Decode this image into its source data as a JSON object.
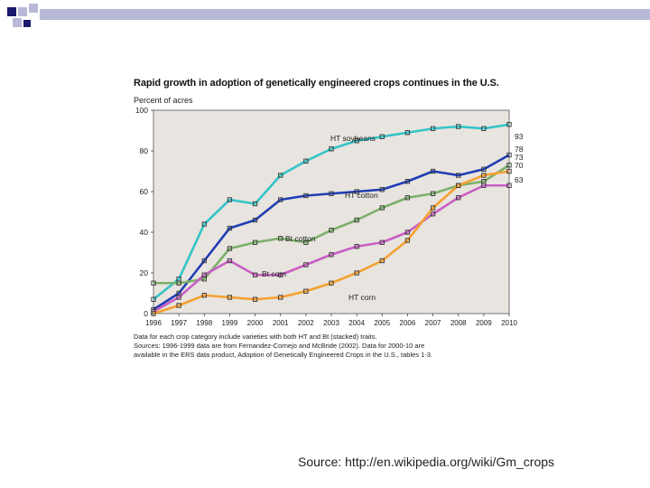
{
  "chart_data": {
    "type": "line",
    "title": "Rapid growth in adoption of genetically engineered crops continues in the U.S.",
    "ylabel": "Percent of acres",
    "xlabel": "",
    "ylim": [
      0,
      100
    ],
    "yticks": [
      0,
      20,
      40,
      60,
      80,
      100
    ],
    "x": [
      "1996",
      "1997",
      "1998",
      "1999",
      "2000",
      "2001",
      "2002",
      "2003",
      "2004",
      "2005",
      "2006",
      "2007",
      "2008",
      "2009",
      "2010"
    ],
    "grid": false,
    "legend": "inline labels",
    "series": [
      {
        "name": "HT soybeans",
        "color": "#33c4c8",
        "end_label": "93",
        "values": [
          7,
          17,
          44,
          56,
          54,
          68,
          75,
          81,
          85,
          87,
          89,
          91,
          92,
          91,
          93
        ]
      },
      {
        "name": "HT cotton",
        "color": "#1f3db5",
        "end_label": "78",
        "values": [
          2,
          10,
          26,
          42,
          46,
          56,
          58,
          59,
          60,
          61,
          65,
          70,
          68,
          71,
          78
        ]
      },
      {
        "name": "Bt cotton",
        "color": "#7ab06a",
        "end_label": "73",
        "values": [
          15,
          15,
          17,
          32,
          35,
          37,
          35,
          41,
          46,
          52,
          57,
          59,
          63,
          65,
          73
        ]
      },
      {
        "name": "Bt corn",
        "color": "#c85fc4",
        "end_label": "63",
        "values": [
          1,
          8,
          19,
          26,
          19,
          19,
          24,
          29,
          33,
          35,
          40,
          49,
          57,
          63,
          63
        ]
      },
      {
        "name": "HT corn",
        "color": "#f5a030",
        "end_label": "70",
        "values": [
          0,
          4,
          9,
          8,
          7,
          8,
          11,
          15,
          20,
          26,
          36,
          52,
          63,
          68,
          70
        ]
      }
    ],
    "inline_labels": [
      "HT soybeans",
      "HT cotton",
      "Bt cotton",
      "Bt corn",
      "HT corn"
    ],
    "plot_background": "#e8e4df"
  },
  "notes": [
    "Data for each crop category include varieties with both HT and Bt (stacked) traits.",
    "Sources: 1996-1999 data are from Fernandez-Cornejo and McBride (2002). Data for 2000-10 are",
    "available in the ERS data product, Adoption of Genetically Engineered Crops in the U.S., tables 1-3."
  ],
  "source_caption": "Source: http://en.wikipedia.org/wiki/Gm_crops",
  "decoration_colors": {
    "dark": "#1a1a6e",
    "light": "#b8b8d8"
  }
}
